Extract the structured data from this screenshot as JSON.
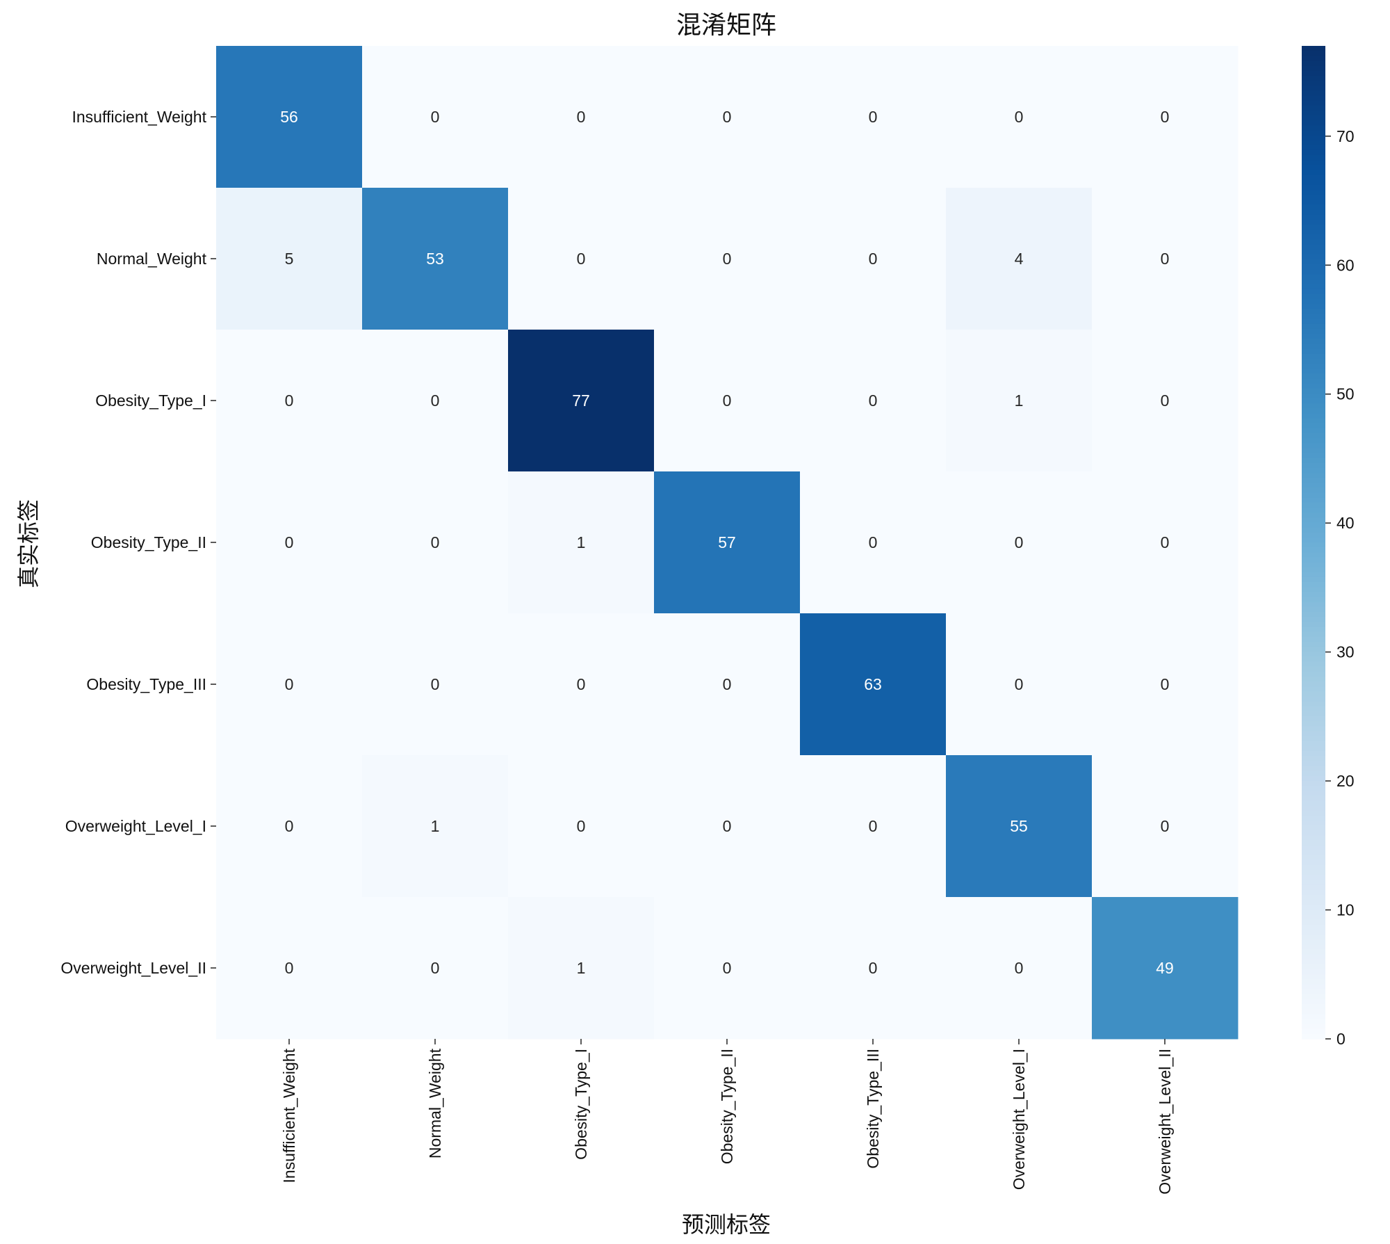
{
  "chart_data": {
    "type": "heatmap",
    "title": "混淆矩阵",
    "xlabel": "预测标签",
    "ylabel": "真实标签",
    "x_categories": [
      "Insufficient_Weight",
      "Normal_Weight",
      "Obesity_Type_I",
      "Obesity_Type_II",
      "Obesity_Type_III",
      "Overweight_Level_I",
      "Overweight_Level_II"
    ],
    "y_categories": [
      "Insufficient_Weight",
      "Normal_Weight",
      "Obesity_Type_I",
      "Obesity_Type_II",
      "Obesity_Type_III",
      "Overweight_Level_I",
      "Overweight_Level_II"
    ],
    "values": [
      [
        56,
        0,
        0,
        0,
        0,
        0,
        0
      ],
      [
        5,
        53,
        0,
        0,
        0,
        4,
        0
      ],
      [
        0,
        0,
        77,
        0,
        0,
        1,
        0
      ],
      [
        0,
        0,
        1,
        57,
        0,
        0,
        0
      ],
      [
        0,
        0,
        0,
        0,
        63,
        0,
        0
      ],
      [
        0,
        1,
        0,
        0,
        0,
        55,
        0
      ],
      [
        0,
        0,
        1,
        0,
        0,
        0,
        49
      ]
    ],
    "colormap": "Blues",
    "colorbar": {
      "range": [
        0,
        77
      ],
      "ticks": [
        0,
        10,
        20,
        30,
        40,
        50,
        60,
        70
      ]
    },
    "annotated": true
  }
}
